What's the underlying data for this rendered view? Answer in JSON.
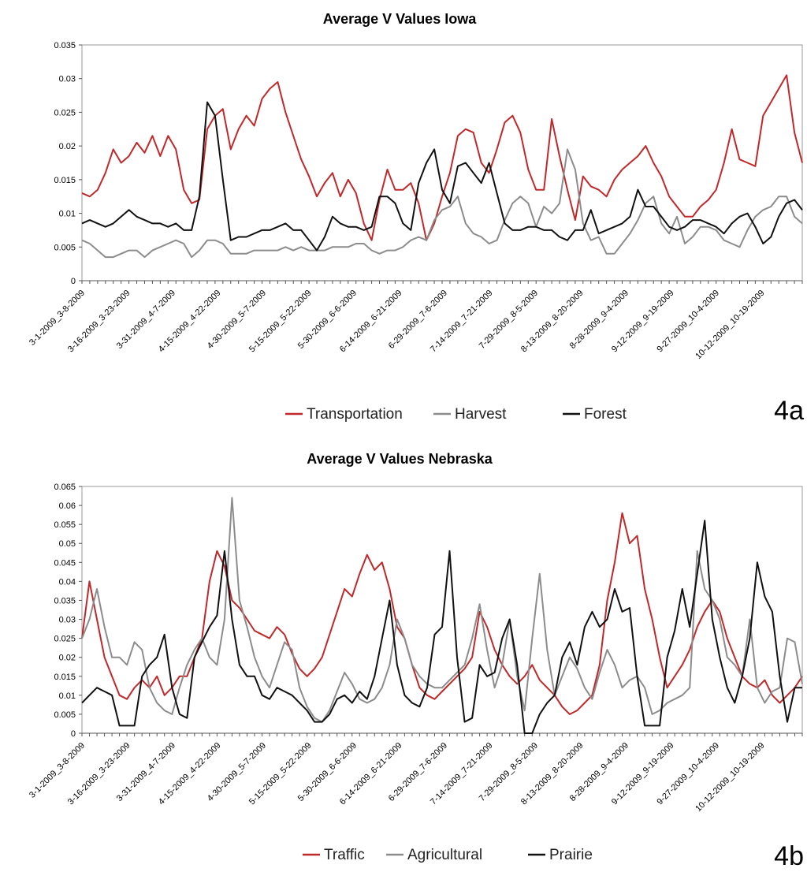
{
  "chart_data": [
    {
      "type": "line",
      "title": "Average V Values Iowa",
      "panel_label": "4a",
      "ylim": [
        0,
        0.035
      ],
      "yticks": [
        "0",
        "0.005",
        "0.01",
        "0.015",
        "0.02",
        "0.025",
        "0.03",
        "0.035"
      ],
      "xtick_labels": [
        "3-1-2009_3-8-2009",
        "3-16-2009_3-23-2009",
        "3-31-2009_4-7-2009",
        "4-15-2009_4-22-2009",
        "4-30-2009_5-7-2009",
        "5-15-2009_5-22-2009",
        "5-30-2009_6-6-2009",
        "6-14-2009_6-21-2009",
        "6-29-2009_7-6-2009",
        "7-14-2009_7-21-2009",
        "7-29-2009_8-5-2009",
        "8-13-2009_8-20-2009",
        "8-28-2009_9-4-2009",
        "9-12-2009_9-19-2009",
        "9-27-2009_10-4-2009",
        "10-12-2009_10-19-2009"
      ],
      "legend": "bottom-center",
      "series": [
        {
          "name": "Transportation",
          "color": "#c0282a",
          "values": [
            0.013,
            0.0125,
            0.0135,
            0.016,
            0.0195,
            0.0175,
            0.0185,
            0.0205,
            0.019,
            0.0215,
            0.0185,
            0.0215,
            0.0195,
            0.0135,
            0.0115,
            0.012,
            0.0225,
            0.0245,
            0.0255,
            0.0195,
            0.0225,
            0.0245,
            0.023,
            0.027,
            0.0285,
            0.0295,
            0.025,
            0.0215,
            0.018,
            0.0155,
            0.0125,
            0.0145,
            0.016,
            0.0125,
            0.015,
            0.013,
            0.0085,
            0.006,
            0.012,
            0.0165,
            0.0135,
            0.0135,
            0.0145,
            0.0115,
            0.006,
            0.0085,
            0.0125,
            0.016,
            0.0215,
            0.0225,
            0.022,
            0.0175,
            0.016,
            0.0195,
            0.0235,
            0.0245,
            0.022,
            0.0165,
            0.0135,
            0.0135,
            0.024,
            0.0185,
            0.0135,
            0.009,
            0.0155,
            0.014,
            0.0135,
            0.0125,
            0.015,
            0.0165,
            0.0175,
            0.0185,
            0.02,
            0.0175,
            0.0155,
            0.0125,
            0.011,
            0.0095,
            0.0095,
            0.011,
            0.012,
            0.0135,
            0.0175,
            0.0225,
            0.018,
            0.0175,
            0.017,
            0.0245,
            0.0265,
            0.0285,
            0.0305,
            0.022,
            0.0175
          ]
        },
        {
          "name": "Harvest",
          "color": "#8c8c8c",
          "values": [
            0.006,
            0.0055,
            0.0045,
            0.0035,
            0.0035,
            0.004,
            0.0045,
            0.0045,
            0.0035,
            0.0045,
            0.005,
            0.0055,
            0.006,
            0.0055,
            0.0035,
            0.0045,
            0.006,
            0.006,
            0.0055,
            0.004,
            0.004,
            0.004,
            0.0045,
            0.0045,
            0.0045,
            0.0045,
            0.005,
            0.0045,
            0.005,
            0.0045,
            0.0045,
            0.0045,
            0.005,
            0.005,
            0.005,
            0.0055,
            0.0055,
            0.0045,
            0.004,
            0.0045,
            0.0045,
            0.005,
            0.006,
            0.0065,
            0.006,
            0.009,
            0.0105,
            0.011,
            0.0125,
            0.0085,
            0.007,
            0.0065,
            0.0055,
            0.006,
            0.009,
            0.0115,
            0.0125,
            0.0115,
            0.008,
            0.011,
            0.01,
            0.0115,
            0.0195,
            0.0165,
            0.0085,
            0.006,
            0.0065,
            0.004,
            0.004,
            0.0055,
            0.007,
            0.009,
            0.0115,
            0.0125,
            0.0085,
            0.007,
            0.0095,
            0.0055,
            0.0065,
            0.008,
            0.008,
            0.0075,
            0.006,
            0.0055,
            0.005,
            0.0075,
            0.0095,
            0.0105,
            0.011,
            0.0125,
            0.0125,
            0.0095,
            0.0085
          ]
        },
        {
          "name": "Forest",
          "color": "#111111",
          "values": [
            0.0085,
            0.009,
            0.0085,
            0.008,
            0.0085,
            0.0095,
            0.0105,
            0.0095,
            0.009,
            0.0085,
            0.0085,
            0.008,
            0.0085,
            0.0075,
            0.0075,
            0.0125,
            0.0265,
            0.0245,
            0.015,
            0.006,
            0.0065,
            0.0065,
            0.007,
            0.0075,
            0.0075,
            0.008,
            0.0085,
            0.0075,
            0.0075,
            0.006,
            0.0045,
            0.0065,
            0.0095,
            0.0085,
            0.008,
            0.008,
            0.0075,
            0.008,
            0.0125,
            0.0125,
            0.0115,
            0.0085,
            0.0075,
            0.0145,
            0.0175,
            0.0195,
            0.0135,
            0.0115,
            0.017,
            0.0175,
            0.016,
            0.0145,
            0.0175,
            0.013,
            0.0085,
            0.0075,
            0.0075,
            0.008,
            0.008,
            0.0075,
            0.0075,
            0.0065,
            0.006,
            0.0075,
            0.0075,
            0.0105,
            0.007,
            0.0075,
            0.008,
            0.0085,
            0.0095,
            0.0135,
            0.011,
            0.011,
            0.0095,
            0.008,
            0.0075,
            0.008,
            0.009,
            0.009,
            0.0085,
            0.008,
            0.007,
            0.0085,
            0.0095,
            0.01,
            0.008,
            0.0055,
            0.0065,
            0.0095,
            0.0115,
            0.012,
            0.0105
          ]
        }
      ]
    },
    {
      "type": "line",
      "title": "Average V Values Nebraska",
      "panel_label": "4b",
      "ylim": [
        0,
        0.065
      ],
      "yticks": [
        "0",
        "0.005",
        "0.01",
        "0.015",
        "0.02",
        "0.025",
        "0.03",
        "0.035",
        "0.04",
        "0.045",
        "0.05",
        "0.055",
        "0.06",
        "0.065"
      ],
      "xtick_labels": [
        "3-1-2009_3-8-2009",
        "3-16-2009_3-23-2009",
        "3-31-2009_4-7-2009",
        "4-15-2009_4-22-2009",
        "4-30-2009_5-7-2009",
        "5-15-2009_5-22-2009",
        "5-30-2009_6-6-2009",
        "6-14-2009_6-21-2009",
        "6-29-2009_7-6-2009",
        "7-14-2009_7-21-2009",
        "7-29-2009_8-5-2009",
        "8-13-2009_8-20-2009",
        "8-28-2009_9-4-2009",
        "9-12-2009_9-19-2009",
        "9-27-2009_10-4-2009",
        "10-12-2009_10-19-2009"
      ],
      "legend": "bottom-center",
      "series": [
        {
          "name": "Traffic",
          "color": "#c0282a",
          "values": [
            0.025,
            0.04,
            0.03,
            0.02,
            0.015,
            0.01,
            0.009,
            0.012,
            0.014,
            0.012,
            0.015,
            0.01,
            0.012,
            0.015,
            0.015,
            0.02,
            0.025,
            0.04,
            0.048,
            0.044,
            0.035,
            0.033,
            0.03,
            0.027,
            0.026,
            0.025,
            0.028,
            0.026,
            0.021,
            0.017,
            0.015,
            0.017,
            0.02,
            0.026,
            0.032,
            0.038,
            0.036,
            0.042,
            0.047,
            0.043,
            0.045,
            0.038,
            0.028,
            0.025,
            0.018,
            0.012,
            0.01,
            0.009,
            0.011,
            0.013,
            0.015,
            0.017,
            0.02,
            0.032,
            0.028,
            0.022,
            0.018,
            0.015,
            0.013,
            0.015,
            0.018,
            0.014,
            0.012,
            0.01,
            0.007,
            0.005,
            0.006,
            0.008,
            0.01,
            0.018,
            0.035,
            0.045,
            0.058,
            0.05,
            0.052,
            0.038,
            0.03,
            0.02,
            0.012,
            0.015,
            0.018,
            0.022,
            0.028,
            0.032,
            0.035,
            0.032,
            0.025,
            0.02,
            0.015,
            0.013,
            0.012,
            0.014,
            0.01,
            0.008,
            0.01,
            0.012,
            0.015
          ]
        },
        {
          "name": "Agricultural",
          "color": "#8c8c8c",
          "values": [
            0.025,
            0.03,
            0.038,
            0.028,
            0.02,
            0.02,
            0.018,
            0.024,
            0.022,
            0.012,
            0.008,
            0.006,
            0.005,
            0.012,
            0.018,
            0.022,
            0.025,
            0.02,
            0.018,
            0.03,
            0.062,
            0.035,
            0.028,
            0.02,
            0.015,
            0.012,
            0.018,
            0.024,
            0.022,
            0.012,
            0.007,
            0.004,
            0.003,
            0.006,
            0.011,
            0.016,
            0.013,
            0.009,
            0.008,
            0.009,
            0.012,
            0.018,
            0.03,
            0.025,
            0.018,
            0.015,
            0.013,
            0.012,
            0.012,
            0.014,
            0.016,
            0.018,
            0.025,
            0.034,
            0.022,
            0.012,
            0.018,
            0.03,
            0.015,
            0.006,
            0.025,
            0.042,
            0.022,
            0.01,
            0.015,
            0.02,
            0.017,
            0.012,
            0.009,
            0.016,
            0.022,
            0.018,
            0.012,
            0.014,
            0.015,
            0.012,
            0.005,
            0.006,
            0.008,
            0.009,
            0.01,
            0.012,
            0.048,
            0.038,
            0.035,
            0.03,
            0.02,
            0.018,
            0.015,
            0.03,
            0.012,
            0.008,
            0.011,
            0.012,
            0.025,
            0.024,
            0.013
          ]
        },
        {
          "name": "Prairie",
          "color": "#111111",
          "values": [
            0.008,
            0.01,
            0.012,
            0.011,
            0.01,
            0.002,
            0.002,
            0.002,
            0.015,
            0.018,
            0.02,
            0.026,
            0.012,
            0.005,
            0.004,
            0.02,
            0.024,
            0.028,
            0.031,
            0.048,
            0.03,
            0.018,
            0.015,
            0.015,
            0.01,
            0.009,
            0.012,
            0.011,
            0.01,
            0.008,
            0.006,
            0.003,
            0.003,
            0.005,
            0.009,
            0.01,
            0.008,
            0.011,
            0.009,
            0.015,
            0.025,
            0.035,
            0.018,
            0.01,
            0.008,
            0.007,
            0.012,
            0.026,
            0.028,
            0.048,
            0.02,
            0.003,
            0.004,
            0.018,
            0.015,
            0.016,
            0.025,
            0.03,
            0.018,
            0.0,
            0.0,
            0.005,
            0.008,
            0.01,
            0.02,
            0.024,
            0.018,
            0.028,
            0.032,
            0.028,
            0.03,
            0.038,
            0.032,
            0.033,
            0.015,
            0.002,
            0.002,
            0.002,
            0.02,
            0.027,
            0.038,
            0.028,
            0.042,
            0.056,
            0.03,
            0.02,
            0.012,
            0.008,
            0.015,
            0.025,
            0.045,
            0.036,
            0.032,
            0.015,
            0.003,
            0.012,
            0.012
          ]
        }
      ]
    }
  ]
}
